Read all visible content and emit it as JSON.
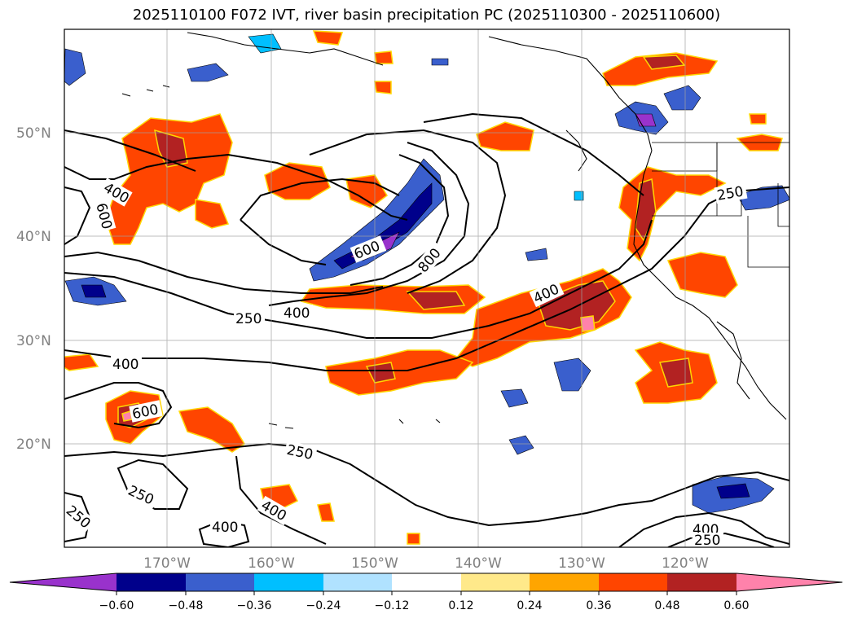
{
  "title": "2025110100 F072 IVT, river basin precipitation PC (2025110300 - 2025110600)",
  "map": {
    "lon_labels": [
      "170°W",
      "160°W",
      "150°W",
      "140°W",
      "130°W",
      "120°W"
    ],
    "lat_labels": [
      "50°N",
      "40°N",
      "30°N",
      "20°N"
    ],
    "contour_labels": [
      "400",
      "600",
      "600",
      "800",
      "400",
      "250",
      "400",
      "400",
      "600",
      "250",
      "250",
      "400",
      "400",
      "250",
      "400",
      "250"
    ]
  },
  "colorbar": {
    "ticks": [
      "−0.60",
      "−0.48",
      "−0.36",
      "−0.24",
      "−0.12",
      "0.12",
      "0.24",
      "0.36",
      "0.48",
      "0.60"
    ],
    "colors": [
      "#9932cc",
      "#00008b",
      "#3a5fcd",
      "#00bfff",
      "#b0e2ff",
      "#ffffff",
      "#ffe98a",
      "#ffa500",
      "#ff4500",
      "#b22222",
      "#ff82ab"
    ]
  }
}
